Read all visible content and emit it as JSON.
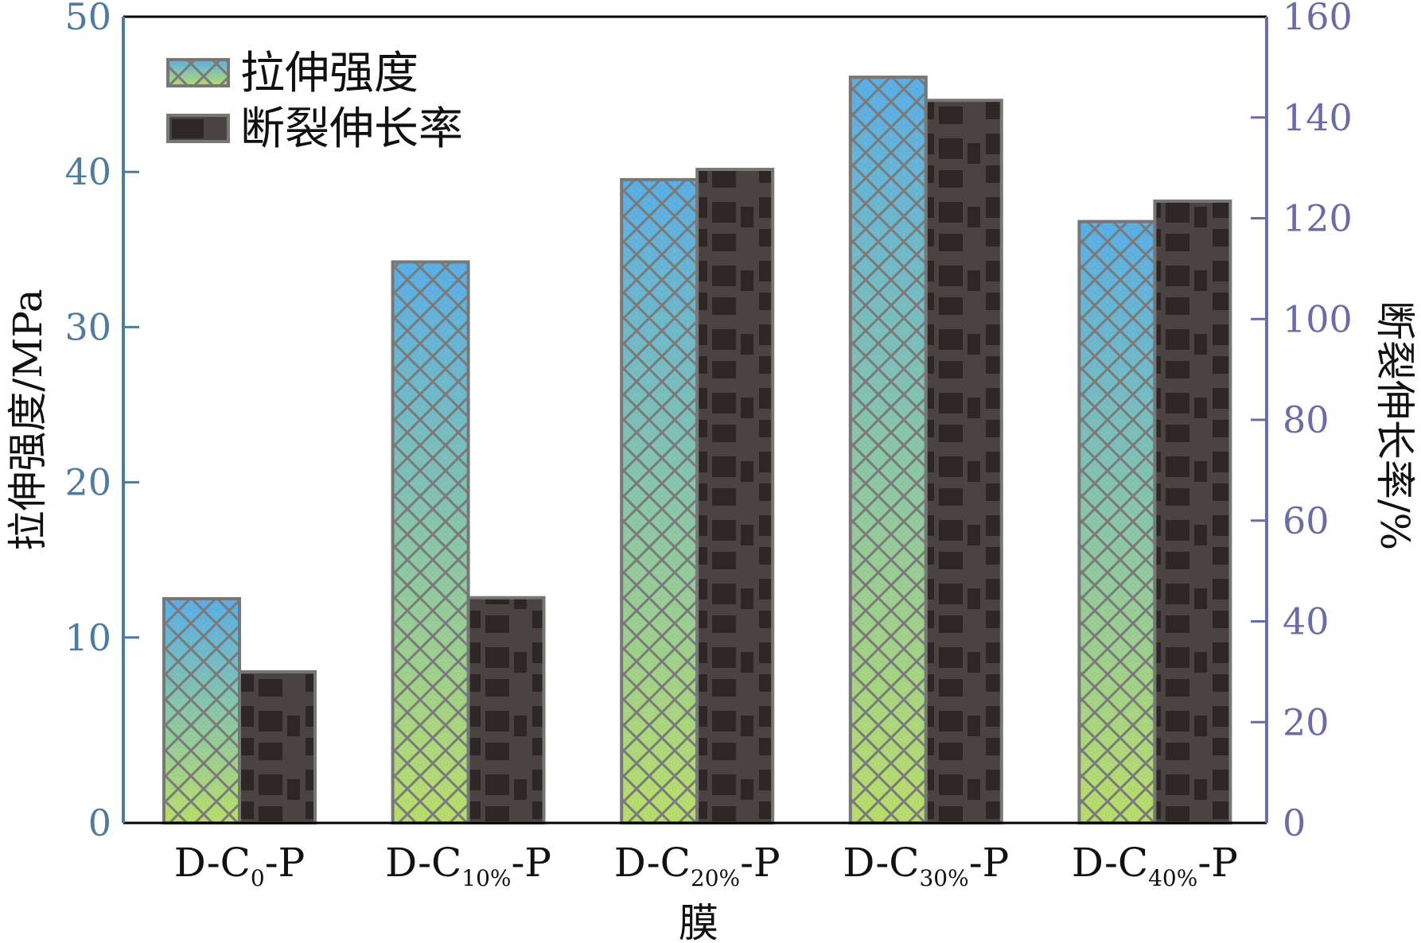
{
  "chart_data": {
    "type": "bar",
    "title": "",
    "xlabel": "膜",
    "ylabel": "拉伸强度/MPa",
    "ylabel_right": "断裂伸长率/%",
    "categories": [
      {
        "main": "D-C",
        "sub": "0",
        "tail": "-P"
      },
      {
        "main": "D-C",
        "sub": "10%",
        "tail": "-P"
      },
      {
        "main": "D-C",
        "sub": "20%",
        "tail": "-P"
      },
      {
        "main": "D-C",
        "sub": "30%",
        "tail": "-P"
      },
      {
        "main": "D-C",
        "sub": "40%",
        "tail": "-P"
      }
    ],
    "series": [
      {
        "name": "拉伸强度",
        "axis": "left",
        "values": [
          12.5,
          34.2,
          39.5,
          46.1,
          36.8
        ]
      },
      {
        "name": "断裂伸长率",
        "axis": "right",
        "values": [
          30,
          44.7,
          129.7,
          143.4,
          123.4
        ]
      }
    ],
    "ylim": [
      0,
      50
    ],
    "ylim_right": [
      0,
      160
    ],
    "yticks": [
      "0",
      "10",
      "20",
      "30",
      "40",
      "50"
    ],
    "yticks_right": [
      "0",
      "20",
      "40",
      "60",
      "80",
      "100",
      "120",
      "140",
      "160"
    ],
    "legend_position": "top-left",
    "grid": false,
    "colors": {
      "left_axis": "#4f7ba0",
      "right_axis": "#6b6ba8",
      "tensile_top": "#5aaee6",
      "tensile_bottom": "#b8dc6a",
      "elongation": "#4a4341"
    }
  }
}
